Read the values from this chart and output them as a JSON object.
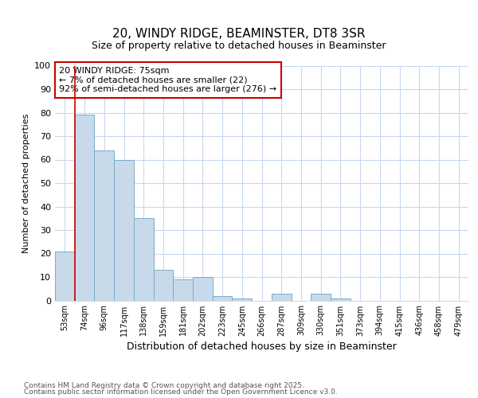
{
  "title1": "20, WINDY RIDGE, BEAMINSTER, DT8 3SR",
  "title2": "Size of property relative to detached houses in Beaminster",
  "xlabel": "Distribution of detached houses by size in Beaminster",
  "ylabel": "Number of detached properties",
  "categories": [
    "53sqm",
    "74sqm",
    "96sqm",
    "117sqm",
    "138sqm",
    "159sqm",
    "181sqm",
    "202sqm",
    "223sqm",
    "245sqm",
    "266sqm",
    "287sqm",
    "309sqm",
    "330sqm",
    "351sqm",
    "373sqm",
    "394sqm",
    "415sqm",
    "436sqm",
    "458sqm",
    "479sqm"
  ],
  "values": [
    21,
    79,
    64,
    60,
    35,
    13,
    9,
    10,
    2,
    1,
    0,
    3,
    0,
    3,
    1,
    0,
    0,
    0,
    0,
    0,
    0
  ],
  "bar_color": "#c8daea",
  "bar_edge_color": "#7aaac8",
  "marker_line_index": 1,
  "marker_line_color": "#cc0000",
  "annotation_text": "20 WINDY RIDGE: 75sqm\n← 7% of detached houses are smaller (22)\n92% of semi-detached houses are larger (276) →",
  "annotation_box_color": "#ffffff",
  "annotation_box_edge": "#cc0000",
  "ylim": [
    0,
    100
  ],
  "yticks": [
    0,
    10,
    20,
    30,
    40,
    50,
    60,
    70,
    80,
    90,
    100
  ],
  "footer1": "Contains HM Land Registry data © Crown copyright and database right 2025.",
  "footer2": "Contains public sector information licensed under the Open Government Licence v3.0.",
  "background_color": "#ffffff",
  "plot_bg_color": "#ffffff",
  "grid_color": "#c8d8f0"
}
